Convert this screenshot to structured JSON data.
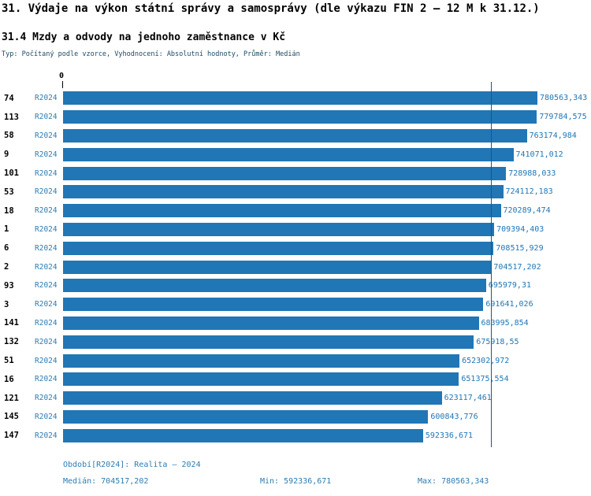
{
  "header": {
    "title": "31. Výdaje na výkon státní správy a samosprávy (dle výkazu FIN 2 – 12 M k 31.12.)",
    "subtitle": "31.4 Mzdy a odvody na jednoho zaměstnance v Kč",
    "type_line": "Typ: Počítaný podle vzorce, Vyhodnocení: Absolutní hodnoty, Průměr: Medián"
  },
  "axis": {
    "zero_label": "0"
  },
  "chart_data": {
    "type": "bar",
    "orientation": "horizontal",
    "title": "31.4 Mzdy a odvody na jednoho zaměstnance v Kč",
    "series_label": "R2024",
    "categories": [
      "74",
      "113",
      "58",
      "9",
      "101",
      "53",
      "18",
      "1",
      "6",
      "2",
      "93",
      "3",
      "141",
      "132",
      "51",
      "16",
      "121",
      "145",
      "147"
    ],
    "values": [
      780563.343,
      779784.575,
      763174.984,
      741071.012,
      728988.033,
      724112.183,
      720289.474,
      709394.403,
      708515.929,
      704517.202,
      695979.31,
      691641.026,
      683995.854,
      675918.55,
      652302.972,
      651375.554,
      623117.461,
      600843.776,
      592336.671
    ],
    "value_labels": [
      "780563,343",
      "779784,575",
      "763174,984",
      "741071,012",
      "728988,033",
      "724112,183",
      "720289,474",
      "709394,403",
      "708515,929",
      "704517,202",
      "695979,31",
      "691641,026",
      "683995,854",
      "675918,55",
      "652302,972",
      "651375,554",
      "623117,461",
      "600843,776",
      "592336,671"
    ],
    "xlim": [
      0,
      780563.343
    ],
    "median": 704517.202,
    "min": 592336.671,
    "max": 780563.343,
    "grid": false,
    "legend_position": "none",
    "bar_color": "#2176b5",
    "median_line_color": "#1b5a78"
  },
  "footer": {
    "period": "Období[R2024]: Realita – 2024",
    "median": "Medián: 704517,202",
    "min": "Min: 592336,671",
    "max": "Max: 780563,343"
  }
}
